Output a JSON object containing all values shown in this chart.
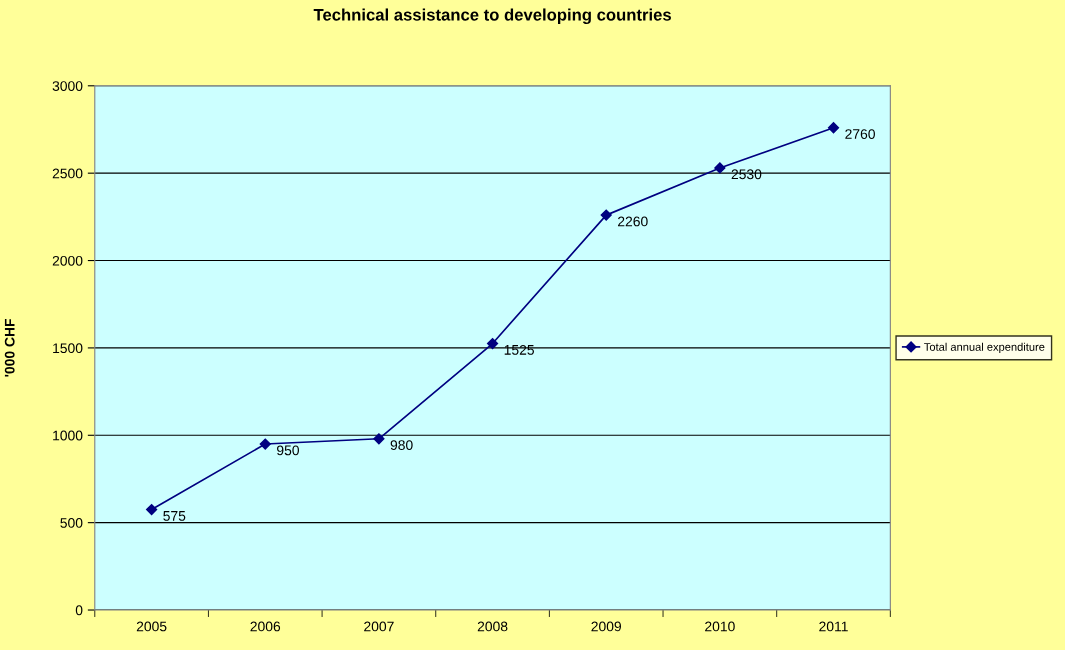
{
  "chart_data": {
    "type": "line",
    "title": "Technical assistance to developing countries",
    "ylabel": "'000 CHF",
    "categories": [
      "2005",
      "2006",
      "2007",
      "2008",
      "2009",
      "2010",
      "2011"
    ],
    "series": [
      {
        "name": "Total annual expenditure",
        "color": "#000080",
        "values": [
          575,
          950,
          980,
          1525,
          2260,
          2530,
          2760
        ]
      }
    ],
    "ylim": [
      0,
      3000
    ],
    "yticks": [
      0,
      500,
      1000,
      1500,
      2000,
      2500,
      3000
    ],
    "grid": "y",
    "legend": "right",
    "marker": "diamond",
    "line_style": "solid",
    "data_labels": true
  }
}
